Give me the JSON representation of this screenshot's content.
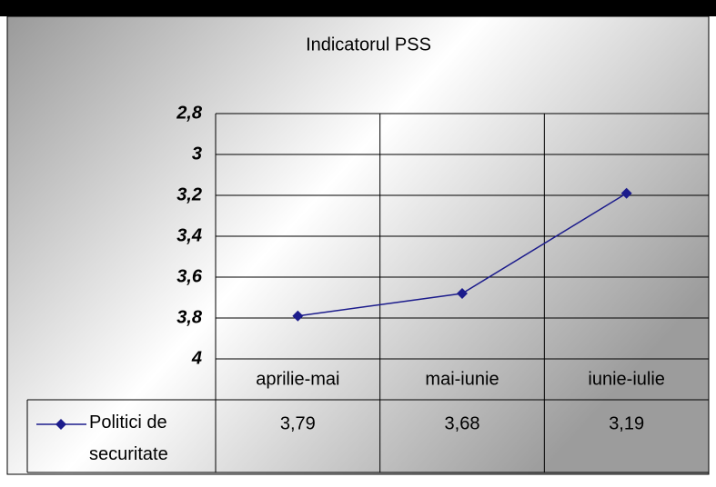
{
  "chart_data": {
    "type": "line",
    "title": "Indicatorul PSS",
    "categories": [
      "aprilie-mai",
      "mai-iunie",
      "iunie-iulie"
    ],
    "series": [
      {
        "name": "Politici de securitate",
        "color": "#1c1c8c",
        "values": [
          3.79,
          3.68,
          3.19
        ],
        "value_labels": [
          "3,79",
          "3,68",
          "3,19"
        ]
      }
    ],
    "ylim": [
      4,
      2.8
    ],
    "yticks": [
      {
        "value": 2.8,
        "label": "2,8"
      },
      3,
      {
        "value": 3.2,
        "label": "3,2"
      },
      {
        "value": 3.4,
        "label": "3,4"
      },
      {
        "value": 3.6,
        "label": "3,6"
      },
      {
        "value": 3.8,
        "label": "3,8"
      },
      4
    ],
    "grid": true
  }
}
